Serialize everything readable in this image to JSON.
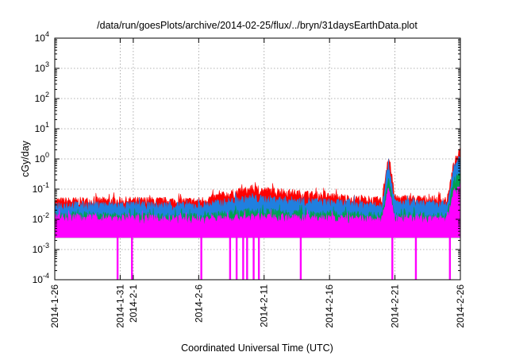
{
  "chart_data": {
    "type": "area",
    "title": "/data/run/goesPlots/archive/2014-02-25/flux/../bryn/31daysEarthData.plot",
    "xlabel": "Coordinated Universal Time (UTC)",
    "ylabel": "cGy/day",
    "y_scale": "log",
    "ylim": [
      0.0001,
      10000
    ],
    "xlim": [
      "2014-01-26",
      "2014-02-26"
    ],
    "grid": true,
    "legend": "none",
    "x_ticks": [
      "2014-1-26",
      "2014-1-31",
      "2014-2-1",
      "2014-2-6",
      "2014-2-11",
      "2014-2-16",
      "2014-2-21",
      "2014-2-26"
    ],
    "y_ticks": [
      {
        "base": "10",
        "exp": "-4",
        "value": 0.0001
      },
      {
        "base": "10",
        "exp": "-3",
        "value": 0.001
      },
      {
        "base": "10",
        "exp": "-2",
        "value": 0.01
      },
      {
        "base": "10",
        "exp": "-1",
        "value": 0.1
      },
      {
        "base": "10",
        "exp": "0",
        "value": 1
      },
      {
        "base": "10",
        "exp": "1",
        "value": 10
      },
      {
        "base": "10",
        "exp": "2",
        "value": 100
      },
      {
        "base": "10",
        "exp": "3",
        "value": 1000
      },
      {
        "base": "10",
        "exp": "4",
        "value": 10000
      }
    ],
    "series": [
      {
        "color": "#ff0000",
        "x": [
          "2014-01-26",
          "2014-01-31",
          "2014-02-06",
          "2014-02-10",
          "2014-02-20",
          "2014-02-20.5",
          "2014-02-21",
          "2014-02-25",
          "2014-02-25.5",
          "2014-02-26"
        ],
        "values": [
          0.04,
          0.042,
          0.04,
          0.1,
          0.04,
          1.4,
          0.05,
          0.045,
          0.7,
          1.8
        ]
      },
      {
        "color": "#2080e0",
        "x": [
          "2014-01-26",
          "2014-01-31",
          "2014-02-06",
          "2014-02-10",
          "2014-02-20",
          "2014-02-20.5",
          "2014-02-21",
          "2014-02-25",
          "2014-02-25.5",
          "2014-02-26"
        ],
        "values": [
          0.03,
          0.03,
          0.028,
          0.05,
          0.03,
          0.8,
          0.035,
          0.03,
          0.5,
          1.0
        ]
      },
      {
        "color": "#00a050",
        "x": [
          "2014-01-26",
          "2014-01-31",
          "2014-02-06",
          "2014-02-10",
          "2014-02-20",
          "2014-02-20.5",
          "2014-02-21",
          "2014-02-25",
          "2014-02-25.5",
          "2014-02-26"
        ],
        "values": [
          0.014,
          0.013,
          0.012,
          0.018,
          0.013,
          0.2,
          0.014,
          0.013,
          0.2,
          0.3
        ]
      },
      {
        "color": "#ff00ff",
        "x": [
          "2014-01-26",
          "2014-01-31",
          "2014-02-06",
          "2014-02-10",
          "2014-02-20",
          "2014-02-20.5",
          "2014-02-21",
          "2014-02-25",
          "2014-02-25.5",
          "2014-02-26"
        ],
        "values": [
          0.012,
          0.011,
          0.01,
          0.012,
          0.01,
          0.1,
          0.011,
          0.01,
          0.08,
          0.14
        ]
      }
    ],
    "magenta_floor": 0.0025,
    "magenta_dropouts": [
      "2014-01-30.8",
      "2014-01-31.9",
      "2014-02-06.2",
      "2014-02-08.4",
      "2014-02-08.9",
      "2014-02-09.4",
      "2014-02-09.7",
      "2014-02-10.2",
      "2014-02-10.6",
      "2014-02-13.8",
      "2014-02-20.8",
      "2014-02-22.6",
      "2014-02-25.2"
    ]
  }
}
